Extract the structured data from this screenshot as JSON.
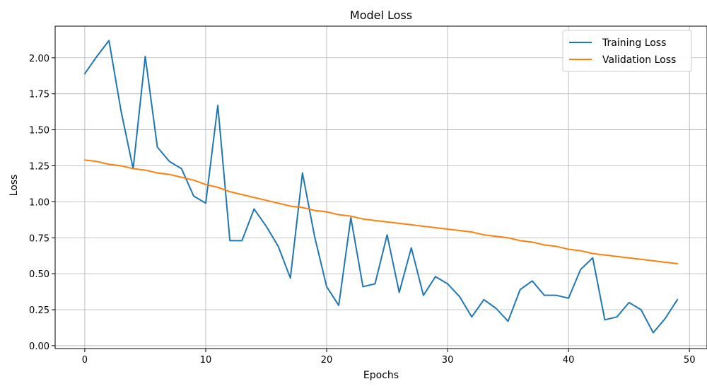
{
  "chart_data": {
    "type": "line",
    "title": "Model Loss",
    "xlabel": "Epochs",
    "ylabel": "Loss",
    "xlim": [
      -2.45,
      51.45
    ],
    "ylim": [
      -0.02,
      2.22
    ],
    "xticks": [
      0,
      10,
      20,
      30,
      40,
      50
    ],
    "xtick_labels": [
      "0",
      "10",
      "20",
      "30",
      "40",
      "50"
    ],
    "yticks": [
      0.0,
      0.25,
      0.5,
      0.75,
      1.0,
      1.25,
      1.5,
      1.75,
      2.0
    ],
    "ytick_labels": [
      "0.00",
      "0.25",
      "0.50",
      "0.75",
      "1.00",
      "1.25",
      "1.50",
      "1.75",
      "2.00"
    ],
    "grid": true,
    "legend": "top-right",
    "x": [
      0,
      1,
      2,
      3,
      4,
      5,
      6,
      7,
      8,
      9,
      10,
      11,
      12,
      13,
      14,
      15,
      16,
      17,
      18,
      19,
      20,
      21,
      22,
      23,
      24,
      25,
      26,
      27,
      28,
      29,
      30,
      31,
      32,
      33,
      34,
      35,
      36,
      37,
      38,
      39,
      40,
      41,
      42,
      43,
      44,
      45,
      46,
      47,
      48,
      49
    ],
    "series": [
      {
        "name": "Training Loss",
        "color": "#1f77b4",
        "values": [
          1.89,
          2.01,
          2.12,
          1.63,
          1.23,
          2.01,
          1.38,
          1.28,
          1.23,
          1.04,
          0.99,
          1.67,
          0.73,
          0.73,
          0.95,
          0.83,
          0.69,
          0.47,
          1.2,
          0.76,
          0.41,
          0.28,
          0.89,
          0.41,
          0.43,
          0.77,
          0.37,
          0.68,
          0.35,
          0.48,
          0.43,
          0.34,
          0.2,
          0.32,
          0.26,
          0.17,
          0.39,
          0.45,
          0.35,
          0.35,
          0.33,
          0.53,
          0.61,
          0.18,
          0.2,
          0.3,
          0.25,
          0.09,
          0.19,
          0.32
        ]
      },
      {
        "name": "Validation Loss",
        "color": "#ff7f0e",
        "values": [
          1.29,
          1.28,
          1.26,
          1.25,
          1.23,
          1.22,
          1.2,
          1.19,
          1.17,
          1.15,
          1.12,
          1.1,
          1.07,
          1.05,
          1.03,
          1.01,
          0.99,
          0.97,
          0.96,
          0.94,
          0.93,
          0.91,
          0.9,
          0.88,
          0.87,
          0.86,
          0.85,
          0.84,
          0.83,
          0.82,
          0.81,
          0.8,
          0.79,
          0.77,
          0.76,
          0.75,
          0.73,
          0.72,
          0.7,
          0.69,
          0.67,
          0.66,
          0.64,
          0.63,
          0.62,
          0.61,
          0.6,
          0.59,
          0.58,
          0.57
        ]
      }
    ]
  }
}
